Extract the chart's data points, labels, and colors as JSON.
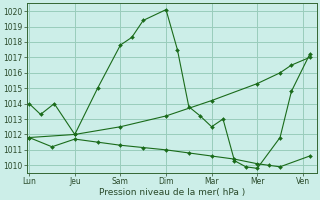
{
  "background_color": "#cceee8",
  "grid_color": "#99ccbb",
  "line_color": "#1a6b1a",
  "xlabel": "Pression niveau de la mer( hPa )",
  "ylim": [
    1009.5,
    1020.5
  ],
  "yticks": [
    1010,
    1011,
    1012,
    1013,
    1014,
    1015,
    1016,
    1017,
    1018,
    1019,
    1020
  ],
  "xtick_labels": [
    "Lun",
    "Jeu",
    "Sam",
    "Dim",
    "Mar",
    "Mer",
    "Ven"
  ],
  "xtick_positions": [
    0,
    1,
    2,
    3,
    4,
    5,
    6
  ],
  "xlim": [
    -0.05,
    6.3
  ],
  "s1_x": [
    0,
    0.25,
    0.55,
    1.0,
    1.5,
    2.0,
    2.25,
    2.5,
    3.0,
    3.25,
    3.5,
    3.75,
    4.0,
    4.25,
    4.5,
    4.75,
    5.0,
    5.5,
    5.75,
    6.15
  ],
  "s1_y": [
    1014.0,
    1013.3,
    1014.0,
    1012.0,
    1015.0,
    1017.8,
    1018.3,
    1019.4,
    1020.1,
    1017.5,
    1013.8,
    1013.2,
    1012.5,
    1013.0,
    1010.3,
    1009.9,
    1009.8,
    1011.8,
    1014.8,
    1017.2
  ],
  "s2_x": [
    0,
    0.5,
    1.0,
    1.5,
    2.0,
    2.5,
    3.0,
    3.5,
    4.0,
    4.5,
    5.0,
    5.25,
    5.5,
    6.15
  ],
  "s2_y": [
    1011.8,
    1011.2,
    1011.7,
    1011.5,
    1011.3,
    1011.15,
    1011.0,
    1010.8,
    1010.6,
    1010.4,
    1010.1,
    1010.0,
    1009.9,
    1010.6
  ],
  "s3_x": [
    0,
    1.0,
    2.0,
    3.0,
    4.0,
    5.0,
    5.5,
    5.75,
    6.15
  ],
  "s3_y": [
    1011.8,
    1012.0,
    1012.5,
    1013.2,
    1014.2,
    1015.3,
    1016.0,
    1016.5,
    1017.0
  ]
}
